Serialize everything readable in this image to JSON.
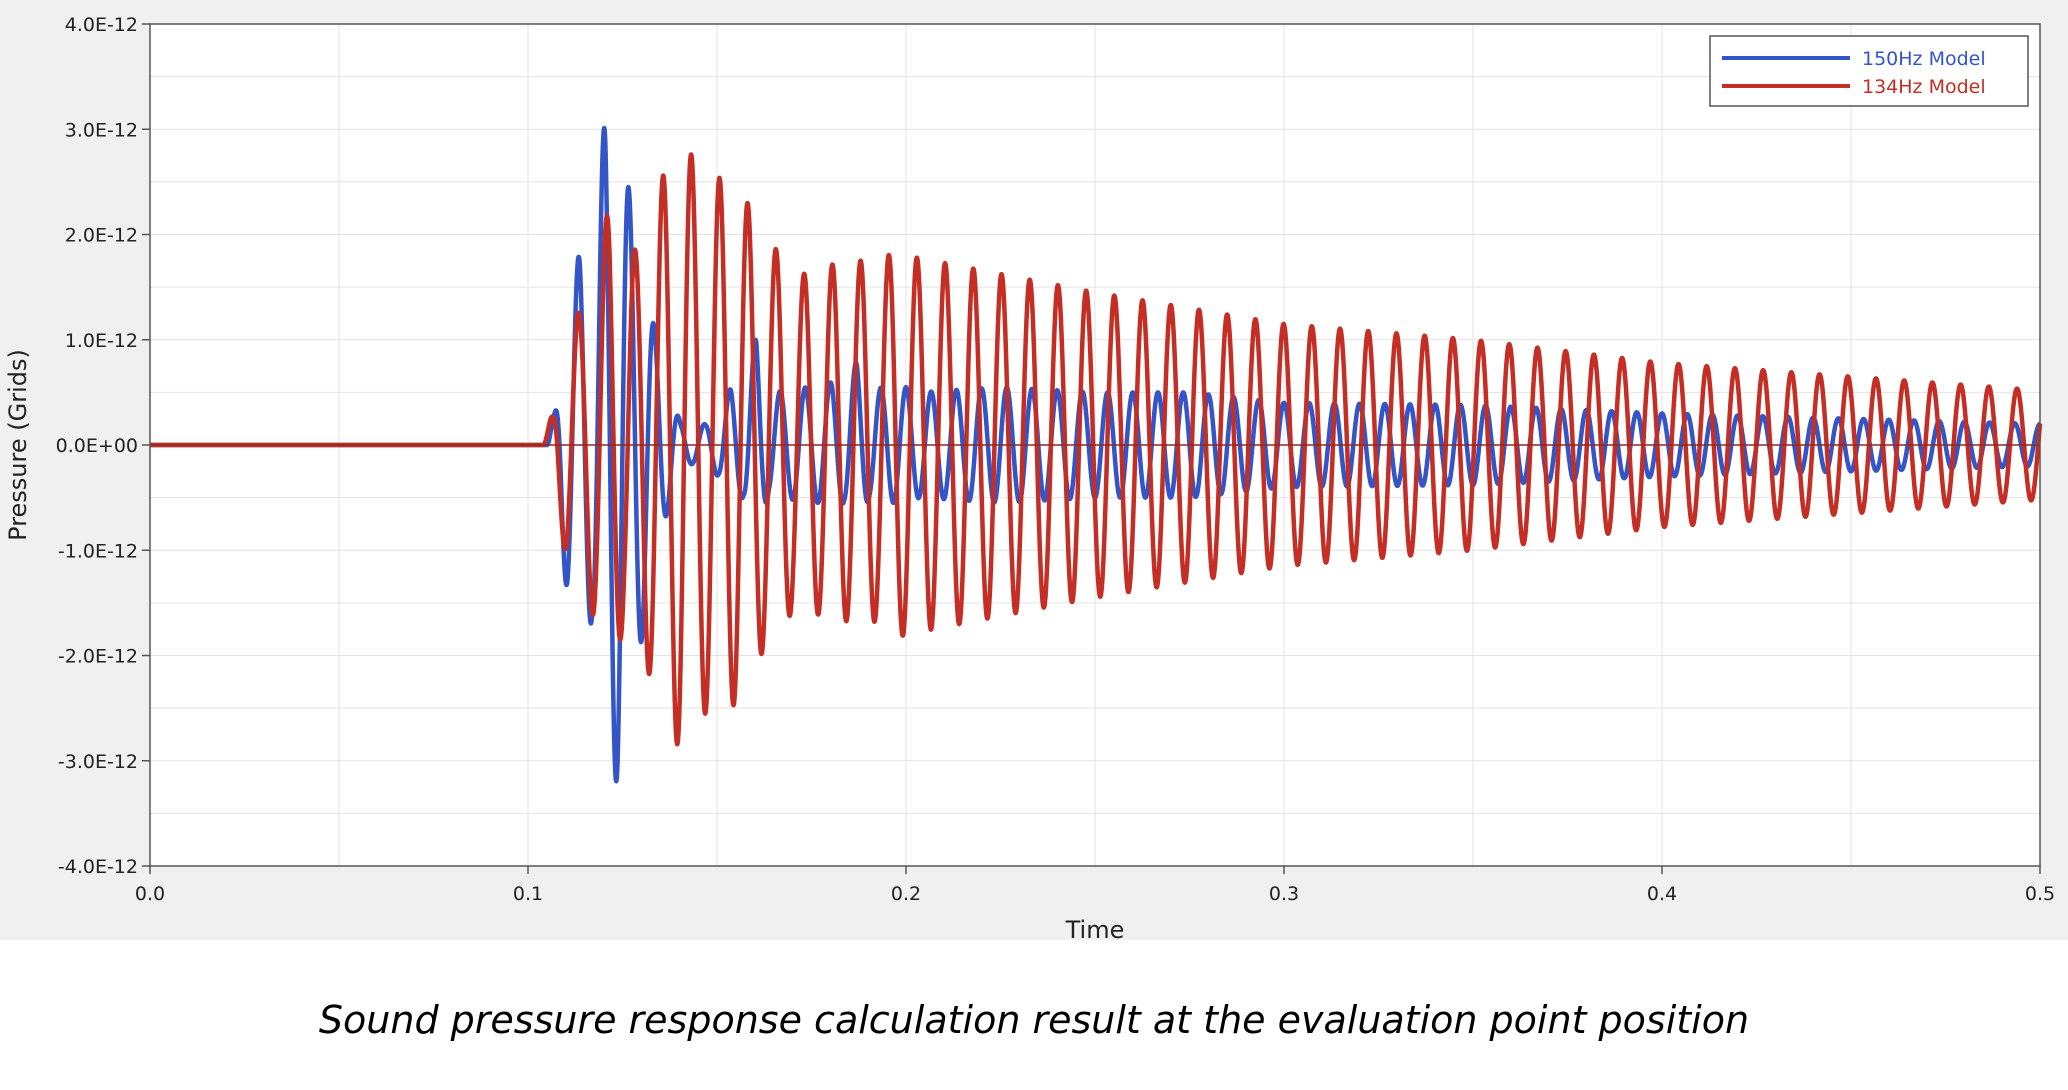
{
  "caption": "Sound pressure response calculation result at the evaluation point position",
  "chart_data": {
    "type": "line",
    "xlabel": "Time",
    "ylabel": "Pressure (Grids)",
    "xlim": [
      0.0,
      0.5
    ],
    "ylim": [
      -4e-12,
      4e-12
    ],
    "x_ticks": [
      0.0,
      0.1,
      0.2,
      0.3,
      0.4,
      0.5
    ],
    "x_tick_labels": [
      "0.0",
      "0.1",
      "0.2",
      "0.3",
      "0.4",
      "0.5"
    ],
    "y_ticks": [
      4e-12,
      3e-12,
      2e-12,
      1e-12,
      0.0,
      -1e-12,
      -2e-12,
      -3e-12,
      -4e-12
    ],
    "y_tick_labels": [
      "4.0E-12",
      "3.0E-12",
      "2.0E-12",
      "1.0E-12",
      "0.0E+00",
      "-1.0E-12",
      "-2.0E-12",
      "-3.0E-12",
      "-4.0E-12"
    ],
    "grid": true,
    "legend_position": "top-right",
    "series": [
      {
        "name": "150Hz Model",
        "color": "#3355c8",
        "frequency_hz": 150,
        "onset_time": 0.105,
        "peaks": [
          {
            "t": 0.107,
            "v": 6.2e-13
          },
          {
            "t": 0.1104,
            "v": -1.4e-12
          },
          {
            "t": 0.1137,
            "v": 1.83e-12
          },
          {
            "t": 0.117,
            "v": -1.68e-12
          },
          {
            "t": 0.1204,
            "v": 3.15e-12
          },
          {
            "t": 0.1237,
            "v": -3.2e-12
          },
          {
            "t": 0.127,
            "v": 2.35e-12
          },
          {
            "t": 0.1304,
            "v": -1.8e-12
          },
          {
            "t": 0.1337,
            "v": 1.05e-12
          },
          {
            "t": 0.137,
            "v": -6.2e-13
          },
          {
            "t": 0.1404,
            "v": 2e-13
          },
          {
            "t": 0.1437,
            "v": -1.8e-13
          },
          {
            "t": 0.147,
            "v": 2e-13
          },
          {
            "t": 0.1504,
            "v": -3e-13
          },
          {
            "t": 0.1537,
            "v": 5.5e-13
          },
          {
            "t": 0.157,
            "v": -5e-13
          },
          {
            "t": 0.1604,
            "v": 1.05e-12
          },
          {
            "t": 0.1637,
            "v": -4.5e-13
          },
          {
            "t": 0.167,
            "v": 5.2e-13
          },
          {
            "t": 0.1704,
            "v": -5.2e-13
          },
          {
            "t": 0.1737,
            "v": 5.5e-13
          },
          {
            "t": 0.177,
            "v": -5.5e-13
          },
          {
            "t": 0.1804,
            "v": 6e-13
          },
          {
            "t": 0.1837,
            "v": -5.5e-13
          },
          {
            "t": 0.187,
            "v": 8e-13
          },
          {
            "t": 0.1904,
            "v": -5e-13
          },
          {
            "t": 0.1937,
            "v": 5.5e-13
          },
          {
            "t": 0.197,
            "v": -5.5e-13
          },
          {
            "t": 0.2004,
            "v": 5.5e-13
          },
          {
            "t": 0.2037,
            "v": -5e-13
          },
          {
            "t": 0.225,
            "v": 5.5e-13
          },
          {
            "t": 0.25,
            "v": -5e-13
          },
          {
            "t": 0.275,
            "v": 5e-13
          },
          {
            "t": 0.3,
            "v": -4e-13
          },
          {
            "t": 0.35,
            "v": 3.8e-13
          },
          {
            "t": 0.4,
            "v": -3e-13
          },
          {
            "t": 0.45,
            "v": 2.5e-13
          },
          {
            "t": 0.5,
            "v": 2e-13
          }
        ]
      },
      {
        "name": "134Hz Model",
        "color": "#c42e24",
        "frequency_hz": 134,
        "onset_time": 0.104,
        "peaks": [
          {
            "t": 0.1067,
            "v": 5e-13
          },
          {
            "t": 0.1104,
            "v": -1.1e-12
          },
          {
            "t": 0.1142,
            "v": 1.3e-12
          },
          {
            "t": 0.1179,
            "v": -1.7e-12
          },
          {
            "t": 0.1216,
            "v": 2.3e-12
          },
          {
            "t": 0.1254,
            "v": -1.7e-12
          },
          {
            "t": 0.1291,
            "v": 1.9e-12
          },
          {
            "t": 0.1328,
            "v": -2.25e-12
          },
          {
            "t": 0.1366,
            "v": 2.65e-12
          },
          {
            "t": 0.1403,
            "v": -2.9e-12
          },
          {
            "t": 0.144,
            "v": 2.72e-12
          },
          {
            "t": 0.1478,
            "v": -2.5e-12
          },
          {
            "t": 0.1515,
            "v": 2.55e-12
          },
          {
            "t": 0.1552,
            "v": -2.45e-12
          },
          {
            "t": 0.159,
            "v": 2.25e-12
          },
          {
            "t": 0.1627,
            "v": -1.9e-12
          },
          {
            "t": 0.1664,
            "v": 1.85e-12
          },
          {
            "t": 0.1702,
            "v": -1.55e-12
          },
          {
            "t": 0.1739,
            "v": 1.65e-12
          },
          {
            "t": 0.1776,
            "v": -1.6e-12
          },
          {
            "t": 0.1814,
            "v": 1.75e-12
          },
          {
            "t": 0.1851,
            "v": -1.65e-12
          },
          {
            "t": 0.1888,
            "v": 1.78e-12
          },
          {
            "t": 0.1925,
            "v": -1.65e-12
          },
          {
            "t": 0.1963,
            "v": 1.85e-12
          },
          {
            "t": 0.2,
            "v": -1.8e-12
          },
          {
            "t": 0.25,
            "v": 1.45e-12
          },
          {
            "t": 0.3,
            "v": -1.15e-12
          },
          {
            "t": 0.35,
            "v": 1e-12
          },
          {
            "t": 0.4,
            "v": -7.8e-13
          },
          {
            "t": 0.45,
            "v": 6.5e-13
          },
          {
            "t": 0.5,
            "v": 5.2e-13
          }
        ]
      }
    ]
  }
}
